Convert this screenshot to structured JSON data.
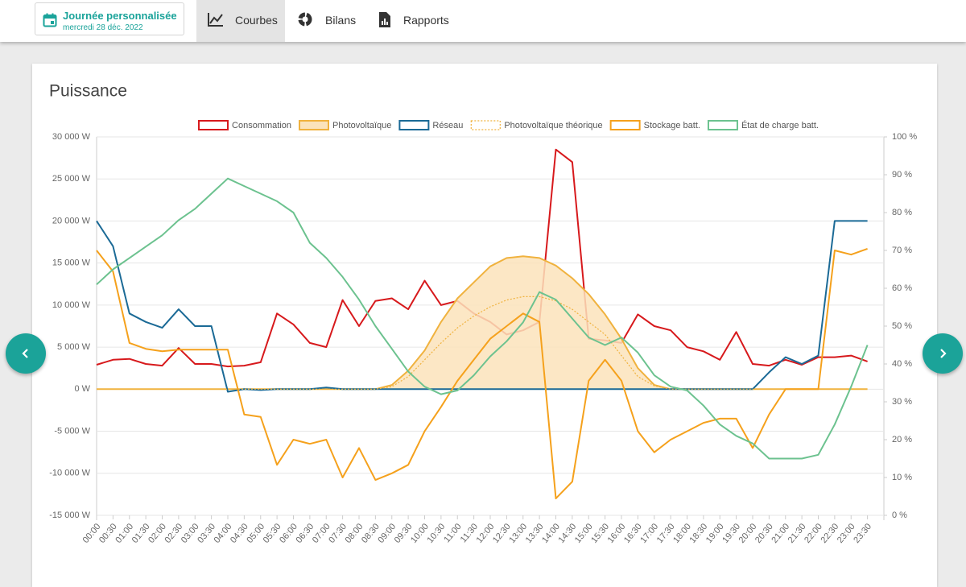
{
  "header": {
    "date_picker": {
      "title": "Journée personnalisée",
      "date": "mercredi 28 déc. 2022"
    },
    "tabs": [
      "Courbes",
      "Bilans",
      "Rapports"
    ],
    "active_tab": 0
  },
  "chart_data": {
    "type": "line",
    "title": "Puissance",
    "categories": [
      "00:00",
      "00:30",
      "01:00",
      "01:30",
      "02:00",
      "02:30",
      "03:00",
      "03:30",
      "04:00",
      "04:30",
      "05:00",
      "05:30",
      "06:00",
      "06:30",
      "07:00",
      "07:30",
      "08:00",
      "08:30",
      "09:00",
      "09:30",
      "10:00",
      "10:30",
      "11:00",
      "11:30",
      "12:00",
      "12:30",
      "13:00",
      "13:30",
      "14:00",
      "14:30",
      "15:00",
      "15:30",
      "16:00",
      "16:30",
      "17:00",
      "17:30",
      "18:00",
      "18:30",
      "19:00",
      "19:30",
      "20:00",
      "20:30",
      "21:00",
      "21:30",
      "22:00",
      "22:30",
      "23:00",
      "23:30"
    ],
    "series": [
      {
        "name": "Consommation",
        "color": "#d7191c",
        "values": [
          2900,
          3500,
          3600,
          3000,
          2800,
          4900,
          3000,
          3000,
          2700,
          2800,
          3200,
          9000,
          7700,
          5500,
          5000,
          10600,
          7500,
          10500,
          10800,
          9500,
          12900,
          10000,
          10500,
          9000,
          8000,
          6500,
          7000,
          8000,
          28500,
          27000,
          6000,
          5800,
          5500,
          8900,
          7500,
          7000,
          5000,
          4500,
          3500,
          6800,
          3000,
          2800,
          3500,
          2900,
          3800,
          3800,
          4000,
          3300
        ]
      },
      {
        "name": "Photovoltaïque",
        "color": "#f0b23e",
        "fill": "#fbe3bb",
        "values": [
          0,
          0,
          0,
          0,
          0,
          0,
          0,
          0,
          0,
          0,
          0,
          0,
          0,
          0,
          0,
          0,
          0,
          0,
          500,
          2200,
          4600,
          8000,
          10800,
          12700,
          14600,
          15600,
          15800,
          15600,
          14700,
          13200,
          11300,
          8900,
          6000,
          2500,
          500,
          0,
          0,
          0,
          0,
          0,
          0,
          0,
          0,
          0,
          0,
          0,
          0,
          0
        ]
      },
      {
        "name": "Réseau",
        "color": "#1b6a96",
        "values": [
          20000,
          17000,
          9000,
          8000,
          7300,
          9500,
          7500,
          7500,
          -300,
          0,
          -100,
          0,
          0,
          0,
          200,
          0,
          0,
          0,
          0,
          0,
          0,
          0,
          0,
          0,
          0,
          0,
          0,
          0,
          0,
          0,
          0,
          0,
          0,
          0,
          0,
          0,
          0,
          0,
          0,
          0,
          0,
          2000,
          3800,
          3000,
          4000,
          20000,
          20000,
          20000
        ]
      },
      {
        "name": "Photovoltaïque théorique",
        "color": "#f0b23e",
        "dashed": true,
        "values": [
          0,
          0,
          0,
          0,
          0,
          0,
          0,
          0,
          0,
          0,
          0,
          0,
          0,
          0,
          0,
          0,
          0,
          0,
          300,
          1500,
          3500,
          5500,
          7300,
          8700,
          9800,
          10600,
          11000,
          11000,
          10500,
          9500,
          8000,
          6500,
          4000,
          1500,
          400,
          0,
          0,
          0,
          0,
          0,
          0,
          0,
          0,
          0,
          0,
          0,
          0,
          0
        ]
      },
      {
        "name": "Stockage batt.",
        "color": "#f5a11c",
        "values": [
          16500,
          14000,
          5500,
          4800,
          4500,
          4700,
          4700,
          4700,
          4700,
          -3000,
          -3300,
          -9000,
          -6000,
          -6500,
          -6000,
          -10500,
          -7000,
          -10800,
          -10000,
          -9000,
          -5000,
          -2100,
          1000,
          3500,
          6000,
          7500,
          9000,
          8000,
          -13000,
          -11000,
          1000,
          3500,
          1000,
          -5000,
          -7500,
          -6000,
          -5000,
          -4000,
          -3500,
          -3500,
          -7000,
          -3000,
          0,
          0,
          0,
          16500,
          16000,
          16700
        ]
      },
      {
        "name": "État de charge batt.",
        "color": "#6cc28f",
        "axis": "y2",
        "values": [
          61,
          65,
          68,
          71,
          74,
          78,
          81,
          85,
          89,
          87,
          85,
          83,
          80,
          72,
          68,
          63,
          57,
          50,
          44,
          38,
          34,
          32,
          33,
          37,
          42,
          46,
          51,
          59,
          57,
          52,
          47,
          45,
          47,
          43,
          37,
          34,
          33,
          29,
          24,
          21,
          19,
          15,
          15,
          15,
          16,
          24,
          34,
          45
        ]
      }
    ],
    "ylim": [
      -15000,
      30000
    ],
    "yticks": [
      {
        "value": -15000,
        "label": "-15 000 W"
      },
      {
        "value": -10000,
        "label": "-10 000 W"
      },
      {
        "value": -5000,
        "label": "-5 000 W"
      },
      {
        "value": 0,
        "label": "0 W"
      },
      {
        "value": 5000,
        "label": "5 000 W"
      },
      {
        "value": 10000,
        "label": "10 000 W"
      },
      {
        "value": 15000,
        "label": "15 000 W"
      },
      {
        "value": 20000,
        "label": "20 000 W"
      },
      {
        "value": 25000,
        "label": "25 000 W"
      },
      {
        "value": 30000,
        "label": "30 000 W"
      }
    ],
    "y2lim": [
      0,
      100
    ],
    "y2ticks": [
      {
        "value": 0,
        "label": "0 %"
      },
      {
        "value": 10,
        "label": "10 %"
      },
      {
        "value": 20,
        "label": "20 %"
      },
      {
        "value": 30,
        "label": "30 %"
      },
      {
        "value": 40,
        "label": "40 %"
      },
      {
        "value": 50,
        "label": "50 %"
      },
      {
        "value": 60,
        "label": "60 %"
      },
      {
        "value": 70,
        "label": "70 %"
      },
      {
        "value": 80,
        "label": "80 %"
      },
      {
        "value": 90,
        "label": "90 %"
      },
      {
        "value": 100,
        "label": "100 %"
      }
    ],
    "grid": true,
    "legend": "top"
  }
}
